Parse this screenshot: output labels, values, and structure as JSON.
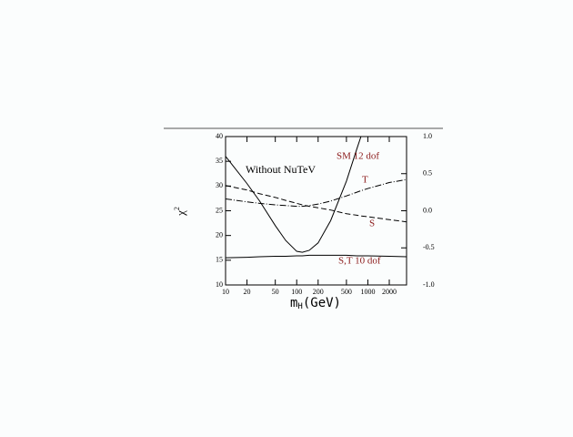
{
  "chart_data": {
    "type": "line",
    "xlabel": [
      "m",
      "H",
      "(GeV)"
    ],
    "ylabel": [
      "χ",
      "2"
    ],
    "x": [
      10,
      20,
      30,
      50,
      70,
      100,
      120,
      150,
      200,
      300,
      500,
      700,
      800,
      1000,
      2000,
      3500
    ],
    "series": [
      {
        "name": "SM 12 dof",
        "color": "#000000",
        "dash": "solid",
        "values": [
          36,
          30.5,
          27,
          22,
          19,
          16.8,
          16.6,
          17,
          18.5,
          23,
          31,
          37.5,
          40,
          null,
          null,
          null
        ]
      },
      {
        "name": "S,T 10 dof",
        "color": "#000000",
        "dash": "solid",
        "values": [
          15.5,
          15.6,
          15.7,
          15.8,
          15.8,
          15.9,
          15.9,
          16,
          16,
          16,
          16,
          15.9,
          15.9,
          15.9,
          15.8,
          15.7
        ]
      },
      {
        "name": "T",
        "color": "#000000",
        "dash": "dashdot",
        "axis": "y2",
        "values": [
          0.16,
          0.12,
          0.1,
          0.08,
          0.07,
          0.06,
          0.06,
          0.07,
          0.09,
          0.13,
          0.2,
          0.25,
          0.27,
          0.3,
          0.38,
          0.42
        ]
      },
      {
        "name": "S",
        "color": "#000000",
        "dash": "dashed",
        "axis": "y2",
        "values": [
          0.34,
          0.28,
          0.23,
          0.18,
          0.14,
          0.1,
          0.08,
          0.06,
          0.04,
          0.01,
          -0.04,
          -0.06,
          -0.07,
          -0.08,
          -0.12,
          -0.15
        ]
      }
    ],
    "annotations": [
      "Without NuTeV"
    ],
    "label_color": "#8b1a1a",
    "log_x": true,
    "xlim": [
      10,
      3500
    ],
    "ylim": [
      10,
      40
    ],
    "y2lim": [
      -1.0,
      1.0
    ],
    "xticks": [
      10,
      20,
      50,
      100,
      200,
      500,
      1000,
      2000
    ],
    "yticks": [
      10,
      15,
      20,
      25,
      30,
      35,
      40
    ],
    "y2ticks": [
      {
        "value": -1.0,
        "label": "-1.0"
      },
      -0.5,
      {
        "value": 0.0,
        "label": "0.0"
      },
      0.5,
      {
        "value": 1.0,
        "label": "1.0"
      }
    ]
  }
}
